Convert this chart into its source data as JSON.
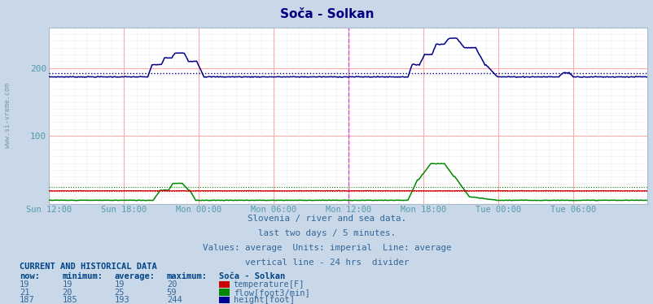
{
  "title": "Soča - Solkan",
  "title_color": "#000080",
  "fig_bg_color": "#c8d8e8",
  "plot_bg_color": "#ffffff",
  "grid_color": "#ffaaaa",
  "fine_grid_color": "#eeeeee",
  "ylabel_color": "#5599aa",
  "watermark_color": "#7799aa",
  "x_tick_labels": [
    "Sun 12:00",
    "Sun 18:00",
    "Mon 00:00",
    "Mon 06:00",
    "Mon 12:00",
    "Mon 18:00",
    "Tue 00:00",
    "Tue 06:00"
  ],
  "x_tick_positions": [
    0,
    72,
    144,
    216,
    288,
    360,
    432,
    504
  ],
  "total_points": 576,
  "ylim": [
    0,
    260
  ],
  "yticks": [
    100,
    200
  ],
  "vline_pos": 288,
  "vline_color": "#dd44dd",
  "avg_height": 193,
  "avg_flow": 25,
  "avg_temp": 19,
  "height_color": "#000088",
  "flow_color": "#008800",
  "temp_color": "#cc0000",
  "subtitle_lines": [
    "Slovenia / river and sea data.",
    "last two days / 5 minutes.",
    "Values: average  Units: imperial  Line: average",
    "vertical line - 24 hrs  divider"
  ],
  "subtitle_color": "#336699",
  "table_header_color": "#004488",
  "table_value_color": "#336699",
  "now_temp": 19,
  "min_temp": 19,
  "avg_temp_val": 19,
  "max_temp": 20,
  "now_flow": 21,
  "min_flow": 20,
  "avg_flow_val": 25,
  "max_flow": 59,
  "now_height": 187,
  "min_height": 185,
  "avg_height_val": 193,
  "max_height": 244
}
